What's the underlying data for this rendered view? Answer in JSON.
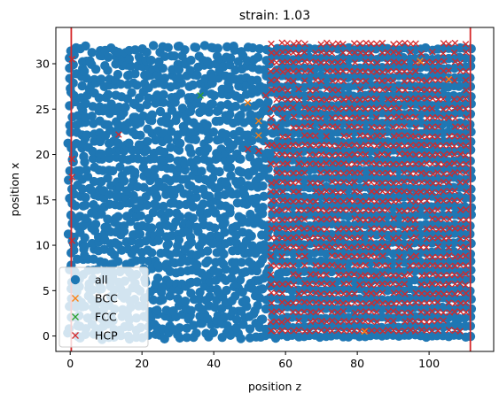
{
  "chart_data": {
    "type": "scatter",
    "title": "strain: 1.03",
    "xlabel": "position z",
    "ylabel": "position x",
    "xlim": [
      -4,
      118
    ],
    "ylim": [
      -1.7,
      34.0
    ],
    "xticks": [
      0,
      20,
      40,
      60,
      80,
      100
    ],
    "yticks": [
      0,
      5,
      10,
      15,
      20,
      25,
      30
    ],
    "grid": false,
    "legend_position": "lower-left",
    "vlines": [
      {
        "x": 0.3,
        "color": "#d62728"
      },
      {
        "x": 111.5,
        "color": "#d62728"
      }
    ],
    "series": [
      {
        "name": "all",
        "marker": "o",
        "color": "#1f77b4",
        "description_of_extent": {
          "z_range": [
            0,
            112
          ],
          "x_range": [
            0,
            32.5
          ]
        },
        "lattice": {
          "z_start": 0,
          "z_end": 112,
          "z_step": 1.55,
          "x_start": 0,
          "x_end": 32.5,
          "x_step": 1.02
        }
      },
      {
        "name": "BCC",
        "marker": "x",
        "color": "#ff7f0e",
        "points": [
          [
            49.5,
            25.7
          ],
          [
            52.5,
            23.7
          ],
          [
            52.5,
            22.1
          ],
          [
            97.5,
            30.3
          ],
          [
            105.5,
            28.3
          ],
          [
            82,
            0.5
          ]
        ]
      },
      {
        "name": "FCC",
        "marker": "x",
        "color": "#2ca02c",
        "points": [
          [
            36.3,
            26.5
          ]
        ]
      },
      {
        "name": "HCP",
        "marker": "x",
        "color": "#d62728",
        "isolated_points": [
          [
            13.5,
            22.2
          ],
          [
            49.5,
            20.6
          ],
          [
            52.5,
            20.4
          ],
          [
            55,
            21.0
          ],
          [
            54.5,
            26.5
          ],
          [
            0.5,
            19.5
          ],
          [
            0.5,
            17.5
          ],
          [
            0.5,
            30.5
          ],
          [
            0.5,
            10.5
          ]
        ],
        "lattice": {
          "z_start": 56,
          "z_end": 111,
          "z_step": 1.55,
          "x_start": 0.6,
          "x_end": 32.4,
          "x_step": 1.02
        }
      }
    ]
  }
}
